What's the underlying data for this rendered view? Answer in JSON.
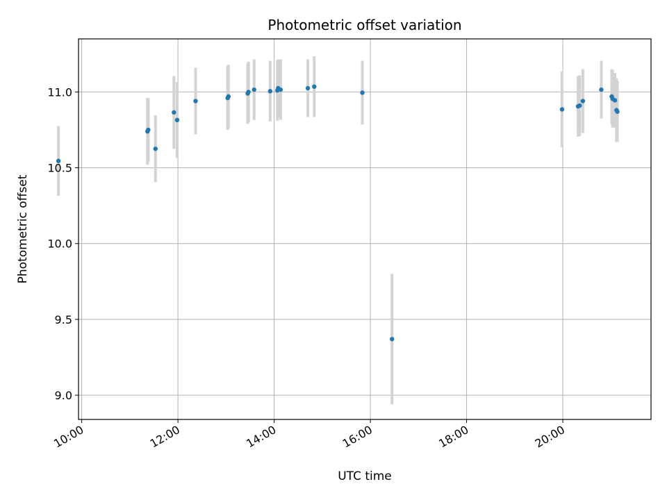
{
  "chart_data": {
    "type": "scatter",
    "title": "Photometric offset variation",
    "xlabel": "UTC time",
    "ylabel": "Photometric offset",
    "x_ticks": [
      "10:00",
      "12:00",
      "14:00",
      "16:00",
      "18:00",
      "20:00"
    ],
    "y_ticks": [
      "9.0",
      "9.5",
      "10.0",
      "10.5",
      "11.0"
    ],
    "xlim": [
      "09:56",
      "21:50"
    ],
    "ylim": [
      8.84,
      11.35
    ],
    "grid": true,
    "colors": {
      "point": "#1f77b4",
      "errorbar": "#d3d3d3",
      "grid": "#b0b0b0"
    },
    "points": [
      {
        "x": "09:31",
        "y": 10.545,
        "err": 0.23
      },
      {
        "x": "11:22",
        "y": 10.74,
        "err": 0.22
      },
      {
        "x": "11:23",
        "y": 10.75,
        "err": 0.21
      },
      {
        "x": "11:32",
        "y": 10.625,
        "err": 0.22
      },
      {
        "x": "11:55",
        "y": 10.865,
        "err": 0.24
      },
      {
        "x": "11:59",
        "y": 10.815,
        "err": 0.25
      },
      {
        "x": "12:22",
        "y": 10.94,
        "err": 0.22
      },
      {
        "x": "13:02",
        "y": 10.96,
        "err": 0.21
      },
      {
        "x": "13:03",
        "y": 10.97,
        "err": 0.21
      },
      {
        "x": "13:27",
        "y": 10.99,
        "err": 0.2
      },
      {
        "x": "13:28",
        "y": 11.0,
        "err": 0.2
      },
      {
        "x": "13:35",
        "y": 11.015,
        "err": 0.2
      },
      {
        "x": "13:55",
        "y": 11.005,
        "err": 0.2
      },
      {
        "x": "14:04",
        "y": 11.01,
        "err": 0.2
      },
      {
        "x": "14:05",
        "y": 11.025,
        "err": 0.19
      },
      {
        "x": "14:08",
        "y": 11.015,
        "err": 0.2
      },
      {
        "x": "14:42",
        "y": 11.025,
        "err": 0.19
      },
      {
        "x": "14:50",
        "y": 11.035,
        "err": 0.2
      },
      {
        "x": "15:50",
        "y": 10.995,
        "err": 0.21
      },
      {
        "x": "16:27",
        "y": 9.37,
        "err": 0.43
      },
      {
        "x": "19:59",
        "y": 10.885,
        "err": 0.25
      },
      {
        "x": "20:19",
        "y": 10.905,
        "err": 0.2
      },
      {
        "x": "20:21",
        "y": 10.91,
        "err": 0.2
      },
      {
        "x": "20:25",
        "y": 10.94,
        "err": 0.21
      },
      {
        "x": "20:48",
        "y": 11.015,
        "err": 0.19
      },
      {
        "x": "21:01",
        "y": 10.97,
        "err": 0.18
      },
      {
        "x": "21:02",
        "y": 10.955,
        "err": 0.19
      },
      {
        "x": "21:05",
        "y": 10.945,
        "err": 0.18
      },
      {
        "x": "21:07",
        "y": 10.88,
        "err": 0.21
      },
      {
        "x": "21:08",
        "y": 10.87,
        "err": 0.2
      }
    ]
  }
}
